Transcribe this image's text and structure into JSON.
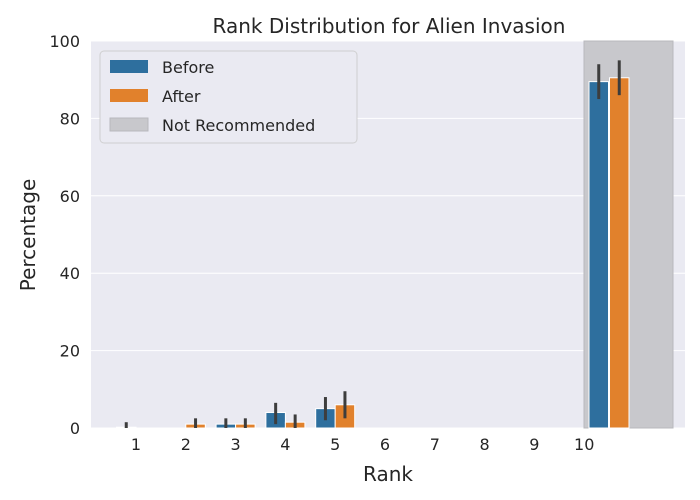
{
  "chart_data": {
    "type": "bar",
    "title": "Rank Distribution for Alien Invasion",
    "xlabel": "Rank",
    "ylabel": "Percentage",
    "ylim": [
      0,
      100
    ],
    "yticks": [
      0,
      20,
      40,
      60,
      80,
      100
    ],
    "categories": [
      "1",
      "2",
      "3",
      "4",
      "5",
      "6",
      "7",
      "8",
      "9",
      "10",
      ""
    ],
    "series": [
      {
        "name": "Before",
        "color": "#2e6f9e",
        "values": [
          0.2,
          0,
          1.0,
          4.0,
          5.0,
          0,
          0,
          0,
          0,
          0,
          89.5
        ],
        "error_low": [
          0,
          0,
          0,
          1.0,
          2.0,
          0,
          0,
          0,
          0,
          0,
          85.0
        ],
        "error_high": [
          1.5,
          0,
          2.5,
          6.5,
          8.0,
          0,
          0,
          0,
          0,
          0,
          94.0
        ]
      },
      {
        "name": "After",
        "color": "#e1812c",
        "values": [
          0,
          1.0,
          1.0,
          1.5,
          6.0,
          0,
          0,
          0,
          0,
          0,
          90.5
        ],
        "error_low": [
          0,
          0,
          0,
          0,
          2.5,
          0,
          0,
          0,
          0,
          0,
          86.0
        ],
        "error_high": [
          0,
          2.5,
          2.5,
          3.5,
          9.5,
          0,
          0,
          0,
          0,
          0,
          95.0
        ]
      }
    ],
    "highlight": {
      "label": "Not Recommended",
      "color": "#c8c8cc",
      "category_index": 10
    },
    "legend_position": "upper-left",
    "grid": true,
    "background": "#eaeaf2"
  }
}
